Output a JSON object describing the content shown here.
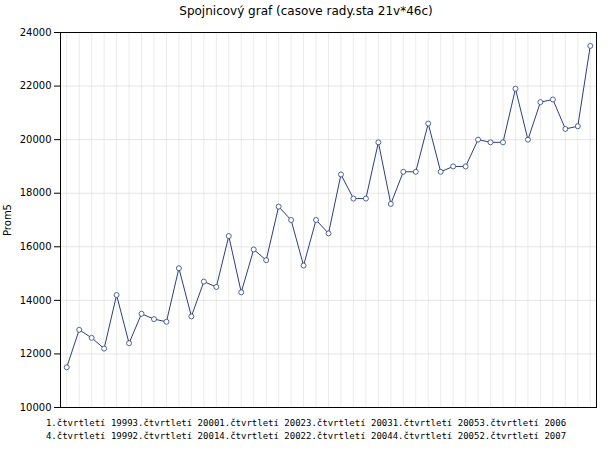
{
  "chart_data": {
    "type": "line",
    "title": "Spojnicový graf (casove rady.sta 21v*46c)",
    "ylabel": "Prom5",
    "values": [
      11500,
      12900,
      12600,
      12200,
      14200,
      12400,
      13500,
      13300,
      13200,
      15200,
      13400,
      14700,
      14500,
      16400,
      14300,
      15900,
      15500,
      17500,
      17000,
      15300,
      17000,
      16500,
      18700,
      17800,
      17800,
      19900,
      17600,
      18800,
      18800,
      20600,
      18800,
      19000,
      19000,
      20000,
      19900,
      19900,
      21900,
      20000,
      21400,
      21500,
      20400,
      20500,
      23500
    ],
    "color": "#2b3f7e",
    "marker": "circle",
    "ylim": [
      10000,
      24000
    ],
    "yticks": [
      10000,
      12000,
      14000,
      16000,
      18000,
      20000,
      22000,
      24000
    ],
    "grid": true,
    "tick_labels": "y",
    "annotations": [
      "1.čtvrtletí 19993.čtvrtletí 20001.čtvrtletí 20023.čtvrtletí 20031.čtvrtletí 20053.čtvrtletí 2006",
      "4.čtvrtletí 19992.čtvrtletí 20014.čtvrtletí 20022.čtvrtletí 20044.čtvrtletí 20052.čtvrtletí 2007"
    ]
  }
}
